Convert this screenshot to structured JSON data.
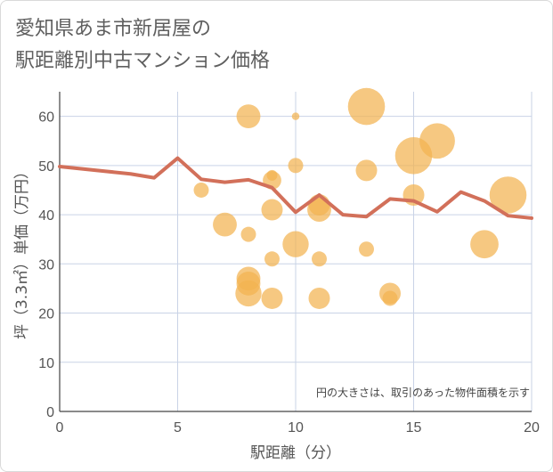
{
  "title_line1": "愛知県あま市新居屋の",
  "title_line2": "駅距離別中古マンション価格",
  "colors": {
    "bubble": "#f2b350",
    "line": "#d2705a",
    "grid": "#c9d3e6",
    "plot_bg": "#ffffff"
  },
  "chart_data": {
    "type": "scatter",
    "xlabel": "駅距離（分）",
    "ylabel": "坪（3.3㎡）単価（万円）",
    "xlim": [
      0,
      20
    ],
    "ylim": [
      0,
      65
    ],
    "xticks": [
      0,
      5,
      10,
      15,
      20
    ],
    "yticks": [
      0,
      10,
      20,
      30,
      40,
      50,
      60
    ],
    "note": "円の大きさは、取引のあった物件面積を示す",
    "legend": "none",
    "grid": true,
    "bubbles": [
      {
        "x": 6,
        "y": 45,
        "size": 2
      },
      {
        "x": 7,
        "y": 38,
        "size": 5
      },
      {
        "x": 8,
        "y": 60,
        "size": 5
      },
      {
        "x": 8,
        "y": 36,
        "size": 2
      },
      {
        "x": 8,
        "y": 27,
        "size": 5
      },
      {
        "x": 8,
        "y": 26,
        "size": 5
      },
      {
        "x": 8,
        "y": 24,
        "size": 6
      },
      {
        "x": 9,
        "y": 48,
        "size": 1
      },
      {
        "x": 9,
        "y": 47,
        "size": 3
      },
      {
        "x": 9,
        "y": 41,
        "size": 4
      },
      {
        "x": 9,
        "y": 31,
        "size": 2
      },
      {
        "x": 9,
        "y": 23,
        "size": 4
      },
      {
        "x": 10,
        "y": 60,
        "size": 0.5
      },
      {
        "x": 10,
        "y": 50,
        "size": 2
      },
      {
        "x": 10,
        "y": 34,
        "size": 6
      },
      {
        "x": 11,
        "y": 42,
        "size": 4
      },
      {
        "x": 11,
        "y": 41,
        "size": 5
      },
      {
        "x": 11,
        "y": 31,
        "size": 2
      },
      {
        "x": 11,
        "y": 23,
        "size": 4
      },
      {
        "x": 13,
        "y": 62,
        "size": 12
      },
      {
        "x": 13,
        "y": 49,
        "size": 4
      },
      {
        "x": 13,
        "y": 33,
        "size": 2
      },
      {
        "x": 14,
        "y": 24,
        "size": 4
      },
      {
        "x": 14,
        "y": 23,
        "size": 2
      },
      {
        "x": 15,
        "y": 52,
        "size": 12
      },
      {
        "x": 15,
        "y": 44,
        "size": 4
      },
      {
        "x": 16,
        "y": 55,
        "size": 11
      },
      {
        "x": 18,
        "y": 34,
        "size": 7
      },
      {
        "x": 19,
        "y": 44,
        "size": 12
      }
    ],
    "series": [
      {
        "type": "line",
        "x": [
          0,
          1,
          2,
          3,
          4,
          5,
          6,
          7,
          8,
          9,
          10,
          11,
          12,
          13,
          14,
          15,
          16,
          17,
          18,
          19,
          20
        ],
        "values": [
          49.8,
          49.3,
          48.8,
          48.3,
          47.5,
          51.5,
          47.2,
          46.6,
          47.1,
          45.5,
          40.5,
          44.0,
          40.0,
          39.6,
          43.2,
          42.8,
          40.6,
          44.6,
          42.8,
          39.8,
          39.3
        ]
      }
    ]
  }
}
